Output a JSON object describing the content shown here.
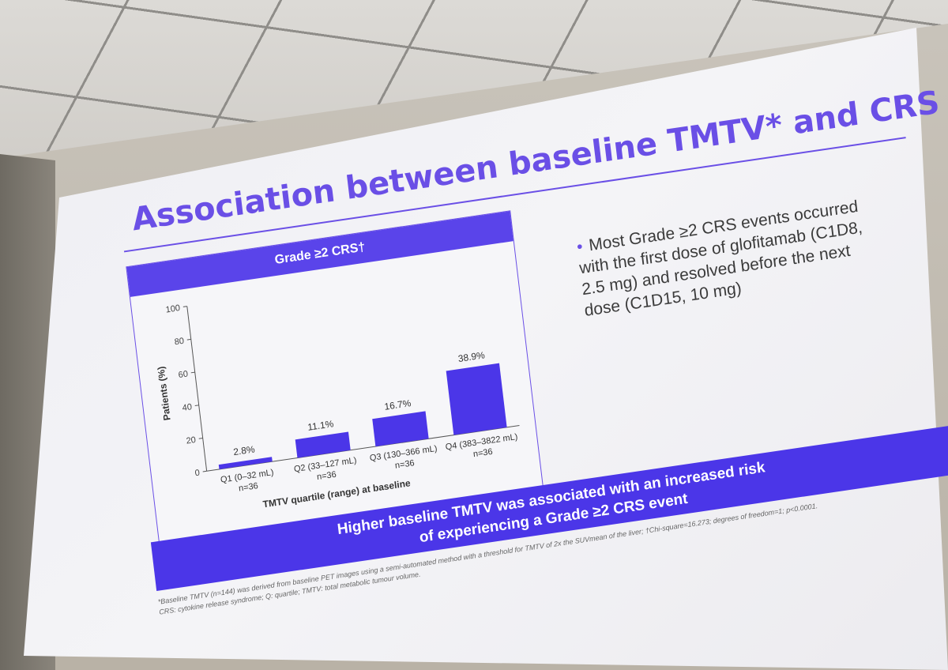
{
  "slide": {
    "title": "Association between baseline TMTV* and CRS",
    "bullet": "Most Grade ≥2 CRS events occurred with the first dose of glofitamab (C1D8, 2.5 mg) and resolved before the next dose (C1D15, 10 mg)",
    "banner_line1": "Higher baseline TMTV was associated with an increased risk",
    "banner_line2": "of experiencing a Grade ≥2 CRS event",
    "footnote_line1": "*Baseline TMTV (n=144) was derived from baseline PET images using a semi-automated method with a threshold for TMTV of 2x the SUVmean of the liver; †Chi-square=16.273; degrees of freedom=1; p<0.0001.",
    "footnote_line2": "CRS: cytokine release syndrome; Q: quartile; TMTV: total metabolic tumour volume."
  },
  "colors": {
    "accent": "#6a4fe6",
    "bar": "#4b36e8",
    "banner": "#4b36e8"
  },
  "chart_data": {
    "type": "bar",
    "title": "Grade ≥2 CRS†",
    "xlabel": "TMTV quartile (range) at baseline",
    "ylabel": "Patients (%)",
    "ylim": [
      0,
      100
    ],
    "yticks": [
      0,
      20,
      40,
      60,
      80,
      100
    ],
    "categories": [
      "Q1 (0–32 mL)",
      "Q2 (33–127 mL)",
      "Q3 (130–366 mL)",
      "Q4 (383–3822 mL)"
    ],
    "category_n": [
      "n=36",
      "n=36",
      "n=36",
      "n=36"
    ],
    "values": [
      2.8,
      11.1,
      16.7,
      38.9
    ],
    "data_labels": [
      "2.8%",
      "11.1%",
      "16.7%",
      "38.9%"
    ]
  }
}
